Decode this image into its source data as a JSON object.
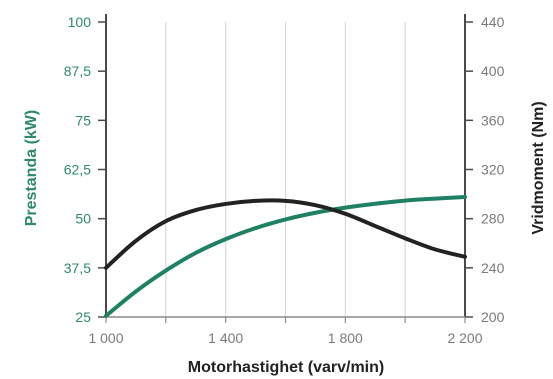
{
  "chart_data": {
    "type": "line",
    "xlabel": "Motorhastighet (varv/min)",
    "ylabel_left": "Prestanda (kW)",
    "ylabel_right": "Vridmoment (Nm)",
    "x_ticks": [
      "1 000",
      "1 400",
      "1 800",
      "2 200"
    ],
    "x_tick_values": [
      1000,
      1400,
      1800,
      2200
    ],
    "y_left_ticks": [
      "25",
      "37,5",
      "50",
      "62,5",
      "75",
      "87,5",
      "100"
    ],
    "y_left_tick_values": [
      25,
      37.5,
      50,
      62.5,
      75,
      87.5,
      100
    ],
    "y_right_ticks": [
      "200",
      "240",
      "280",
      "320",
      "360",
      "400",
      "440"
    ],
    "y_right_tick_values": [
      200,
      240,
      280,
      320,
      360,
      400,
      440
    ],
    "xlim": [
      1000,
      2200
    ],
    "ylim_left": [
      25,
      100
    ],
    "ylim_right": [
      200,
      440
    ],
    "grid": "vertical",
    "series": [
      {
        "axis": "left",
        "color": "#1f8163",
        "x": [
          1000,
          1100,
          1200,
          1300,
          1400,
          1500,
          1600,
          1700,
          1800,
          1900,
          2000,
          2100,
          2200
        ],
        "values": [
          25.3,
          31.5,
          36.8,
          41.3,
          44.8,
          47.6,
          49.8,
          51.5,
          52.8,
          53.8,
          54.6,
          55.1,
          55.5
        ]
      },
      {
        "axis": "right",
        "color": "#222222",
        "x": [
          1000,
          1100,
          1200,
          1300,
          1400,
          1500,
          1600,
          1700,
          1800,
          1900,
          2000,
          2100,
          2200
        ],
        "values": [
          240,
          262,
          278,
          287,
          292,
          294.5,
          294.5,
          291,
          284,
          274,
          264,
          255,
          249
        ]
      }
    ]
  }
}
